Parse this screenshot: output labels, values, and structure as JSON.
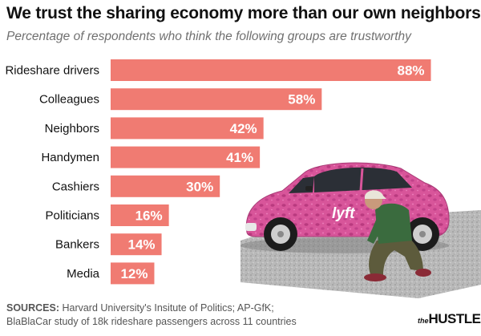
{
  "title": "We trust the sharing economy more than our own neighbors",
  "subtitle": "Percentage of respondents who think the following groups are trustworthy",
  "sources": {
    "label": "SOURCES:",
    "line1": "Harvard University's Insitute of Politics; AP-GfK;",
    "line2": "BlaBlaCar study of 18k rideshare passengers across 11 countries"
  },
  "logo": {
    "prefix": "the",
    "name": "HUSTLE"
  },
  "illustration": {
    "car_badge": "lyft"
  },
  "colors": {
    "bar": "#f07b72",
    "label_text": "#ffffff",
    "car": "#d9569b"
  },
  "chart_data": {
    "type": "bar",
    "orientation": "horizontal",
    "categories": [
      "Rideshare drivers",
      "Colleagues",
      "Neighbors",
      "Handymen",
      "Cashiers",
      "Politicians",
      "Bankers",
      "Media"
    ],
    "values": [
      88,
      58,
      42,
      41,
      30,
      16,
      14,
      12
    ],
    "value_labels": [
      "88%",
      "58%",
      "42%",
      "41%",
      "30%",
      "16%",
      "14%",
      "12%"
    ],
    "xlim": [
      0,
      100
    ],
    "grid": false
  }
}
